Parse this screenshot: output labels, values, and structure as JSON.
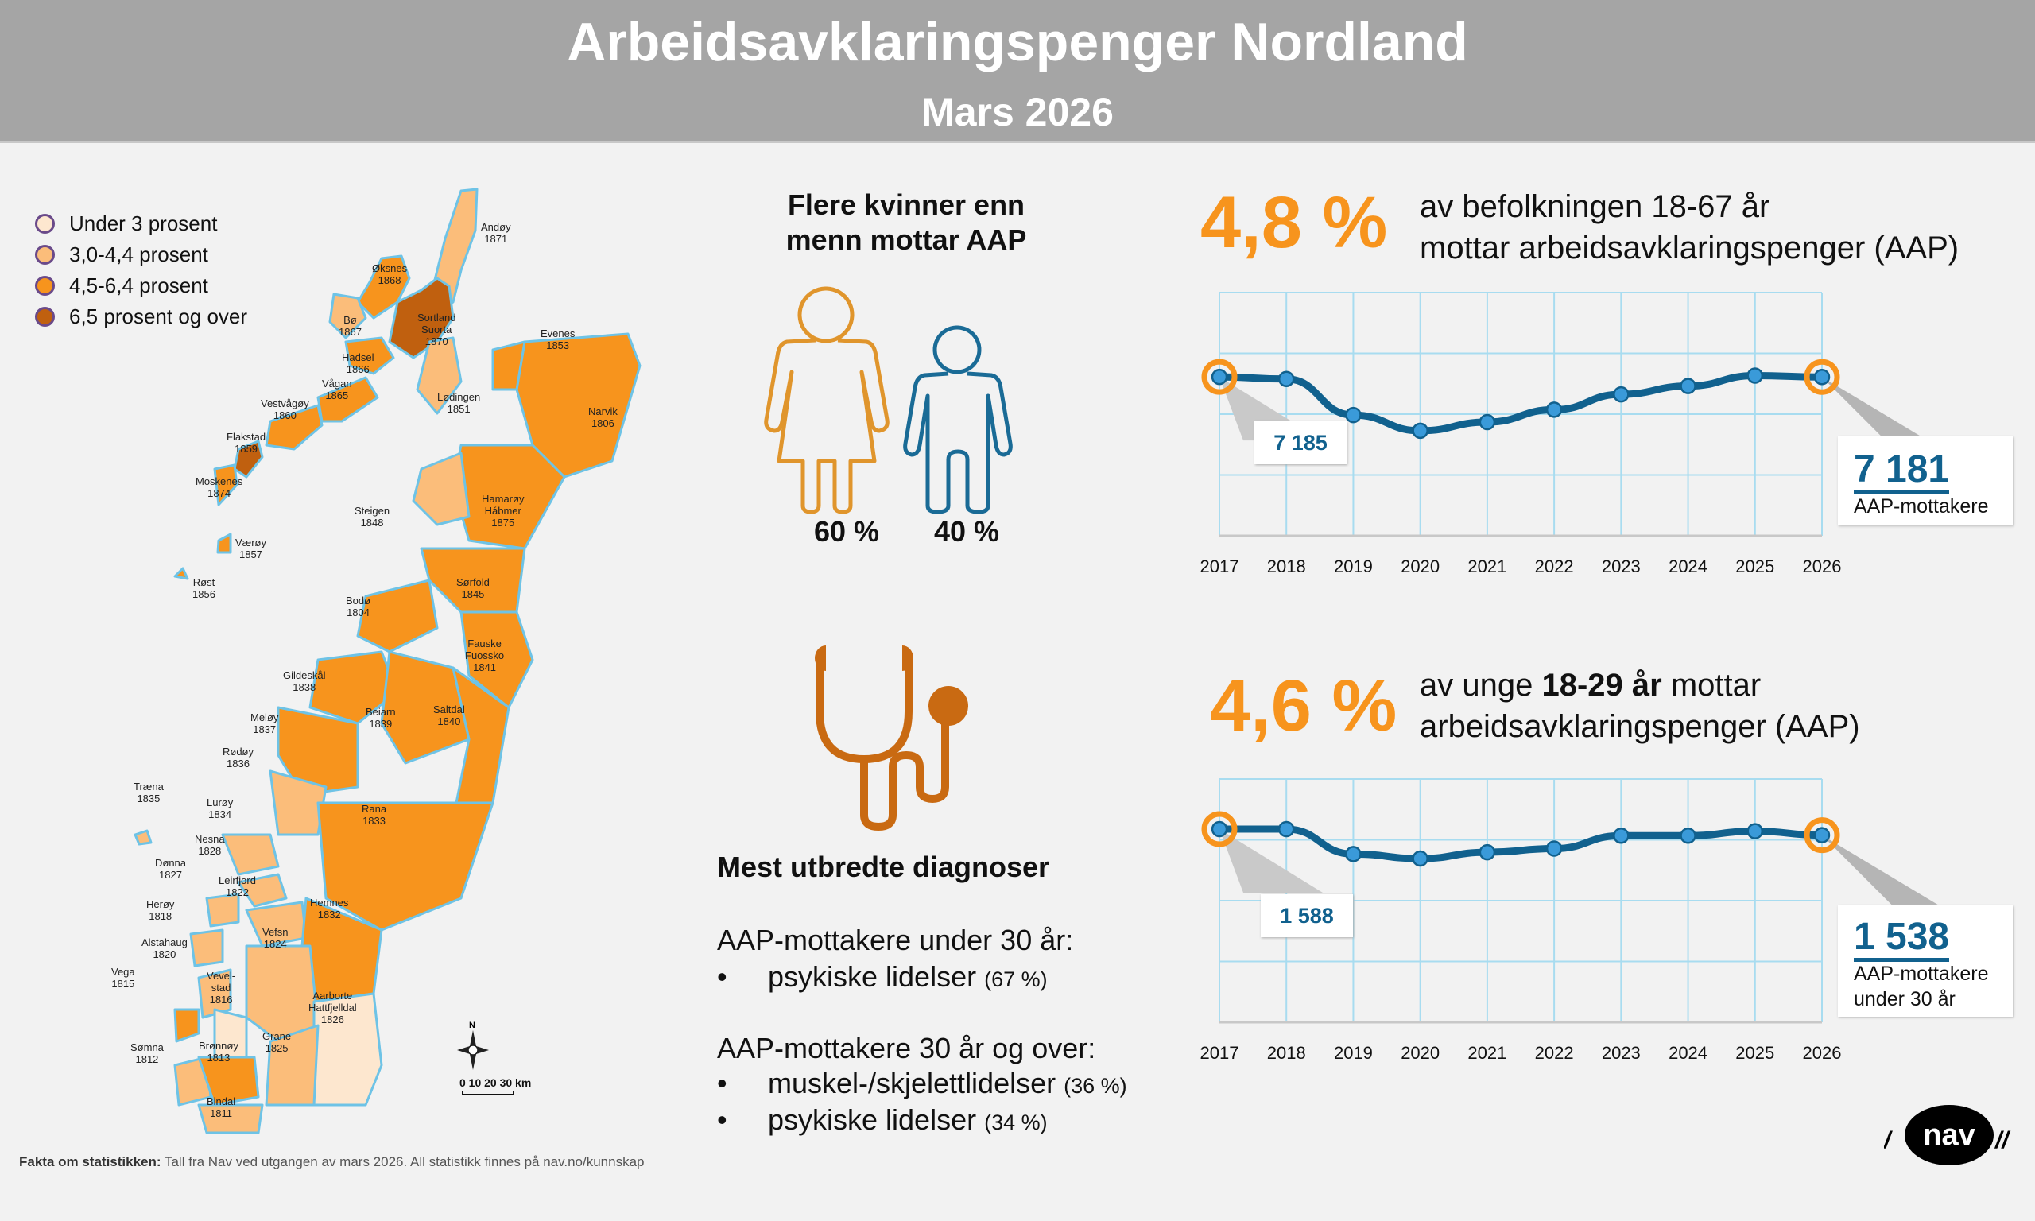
{
  "header": {
    "title": "Arbeidsavklaringspenger Nordland",
    "subtitle": "Mars 2026"
  },
  "legend": [
    {
      "label": "Under 3 prosent",
      "color": "#fde7cf"
    },
    {
      "label": "3,0-4,4 prosent",
      "color": "#fbbd7a"
    },
    {
      "label": "4,5-6,4 prosent",
      "color": "#f7941d"
    },
    {
      "label": "6,5 prosent og over",
      "color": "#c0600f"
    }
  ],
  "map": {
    "municipalities": [
      {
        "name": "Andøy",
        "code": "1871",
        "category": 1
      },
      {
        "name": "Øksnes",
        "code": "1868",
        "category": 2
      },
      {
        "name": "Bø",
        "code": "1867",
        "category": 1
      },
      {
        "name": "Sortland\nSuorta",
        "code": "1870",
        "category": 3
      },
      {
        "name": "Hadsel",
        "code": "1866",
        "category": 2
      },
      {
        "name": "Evenes",
        "code": "1853",
        "category": 2
      },
      {
        "name": "Vågan",
        "code": "1865",
        "category": 2
      },
      {
        "name": "Vestvågøy",
        "code": "1860",
        "category": 2
      },
      {
        "name": "Lødingen",
        "code": "1851",
        "category": 1
      },
      {
        "name": "Narvik",
        "code": "1806",
        "category": 2
      },
      {
        "name": "Flakstad",
        "code": "1859",
        "category": 3
      },
      {
        "name": "Moskenes",
        "code": "1874",
        "category": 2
      },
      {
        "name": "Hamarøy\nHábmer",
        "code": "1875",
        "category": 2
      },
      {
        "name": "Steigen",
        "code": "1848",
        "category": 1
      },
      {
        "name": "Værøy",
        "code": "1857",
        "category": 2
      },
      {
        "name": "Røst",
        "code": "1856",
        "category": 2
      },
      {
        "name": "Sørfold",
        "code": "1845",
        "category": 2
      },
      {
        "name": "Bodø",
        "code": "1804",
        "category": 2
      },
      {
        "name": "Fauske\nFuossko",
        "code": "1841",
        "category": 2
      },
      {
        "name": "Gildeskål",
        "code": "1838",
        "category": 2
      },
      {
        "name": "Beiarn",
        "code": "1839",
        "category": 2
      },
      {
        "name": "Saltdal",
        "code": "1840",
        "category": 2
      },
      {
        "name": "Meløy",
        "code": "1837",
        "category": 2
      },
      {
        "name": "Rødøy",
        "code": "1836",
        "category": 1
      },
      {
        "name": "Træna",
        "code": "1835",
        "category": 1
      },
      {
        "name": "Lurøy",
        "code": "1834",
        "category": 1
      },
      {
        "name": "Rana",
        "code": "1833",
        "category": 2
      },
      {
        "name": "Nesna",
        "code": "1828",
        "category": 1
      },
      {
        "name": "Dønna",
        "code": "1827",
        "category": 1
      },
      {
        "name": "Leirfjord",
        "code": "1822",
        "category": 1
      },
      {
        "name": "Herøy",
        "code": "1818",
        "category": 1
      },
      {
        "name": "Hemnes",
        "code": "1832",
        "category": 2
      },
      {
        "name": "Alstahaug",
        "code": "1820",
        "category": 1
      },
      {
        "name": "Vefsn",
        "code": "1824",
        "category": 1
      },
      {
        "name": "Vega",
        "code": "1815",
        "category": 2
      },
      {
        "name": "Vevel-\nstad",
        "code": "1816",
        "category": 0
      },
      {
        "name": "Aarborte\nHattfjelldal",
        "code": "1826",
        "category": 0
      },
      {
        "name": "Sømna",
        "code": "1812",
        "category": 1
      },
      {
        "name": "Brønnøy",
        "code": "1813",
        "category": 2
      },
      {
        "name": "Grane",
        "code": "1825",
        "category": 1
      },
      {
        "name": "Bindal",
        "code": "1811",
        "category": 1
      }
    ],
    "compass_label": "N",
    "scale_label": "0  10  20  30 km"
  },
  "gender": {
    "title_line1": "Flere kvinner enn",
    "title_line2": "menn mottar AAP",
    "women_pct": "60 %",
    "men_pct": "40 %",
    "women_color": "#e0952c",
    "men_color": "#1a6b96"
  },
  "diagnoses": {
    "title": "Mest utbredte diagnoser",
    "group1_heading": "AAP-mottakere under 30 år:",
    "group1_items": [
      {
        "label": "psykiske lidelser",
        "pct": "(67 %)"
      }
    ],
    "group2_heading": "AAP-mottakere 30 år og over:",
    "group2_items": [
      {
        "label": "muskel-/skjelettlidelser",
        "pct": "(36 %)"
      },
      {
        "label": "psykiske lidelser",
        "pct": "(34 %)"
      }
    ],
    "bullet": "•",
    "icon_color": "#c96a12"
  },
  "stat1": {
    "pct": "4,8 %",
    "line1": "av befolkningen 18-67 år",
    "line2": "mottar arbeidsavklaringspenger (AAP)"
  },
  "stat2": {
    "pct": "4,6 %",
    "line1_pre": "av unge ",
    "line1_bold": "18-29 år",
    "line1_post": " mottar",
    "line2": "arbeidsavklaringspenger (AAP)"
  },
  "chart_data": [
    {
      "type": "line",
      "title": "AAP-mottakere",
      "x": [
        "2017",
        "2018",
        "2019",
        "2020",
        "2021",
        "2022",
        "2023",
        "2024",
        "2025",
        "2026"
      ],
      "series": [
        {
          "name": "AAP-mottakere",
          "values": [
            7185,
            7090,
            5460,
            4750,
            5140,
            5700,
            6395,
            6770,
            7245,
            7181
          ]
        }
      ],
      "ylim": [
        0,
        11000
      ],
      "grid": true,
      "start_label": "7 185",
      "end_label": "7 181",
      "end_desc": [
        "AAP-mottakere"
      ],
      "line_color": "#11618e",
      "highlight_color": "#f7941d"
    },
    {
      "type": "line",
      "title": "AAP-mottakere under 30 år",
      "x": [
        "2017",
        "2018",
        "2019",
        "2020",
        "2021",
        "2022",
        "2023",
        "2024",
        "2025",
        "2026"
      ],
      "series": [
        {
          "name": "AAP-mottakere under 30 år",
          "values": [
            1588,
            1588,
            1383,
            1346,
            1398,
            1428,
            1534,
            1534,
            1571,
            1538
          ]
        }
      ],
      "ylim": [
        0,
        2000
      ],
      "grid": true,
      "start_label": "1 588",
      "end_label": "1 538",
      "end_desc": [
        "AAP-mottakere",
        "under 30 år"
      ],
      "line_color": "#11618e",
      "highlight_color": "#f7941d"
    }
  ],
  "footer": {
    "bold": "Fakta om statistikken:",
    "text": " Tall fra Nav ved utgangen av mars 2026. All statistikk finnes på nav.no/kunnskap"
  },
  "logo": {
    "text": "nav",
    "slashes_left": "/",
    "slashes_right": "//"
  }
}
